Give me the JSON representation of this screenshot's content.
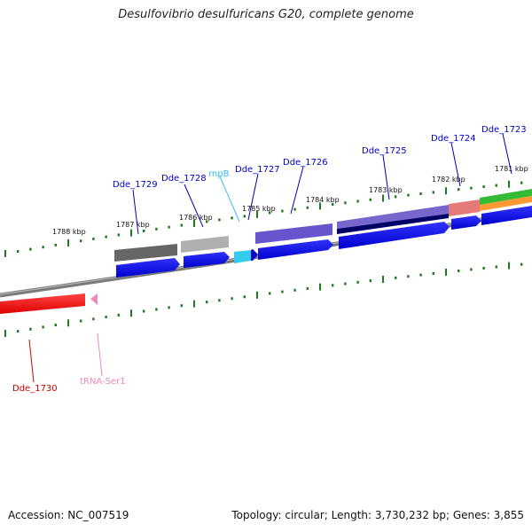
{
  "title": "Desulfovibrio desulfuricans G20, complete genome",
  "footer": {
    "accession_label": "Accession: NC_007519",
    "summary_label": "Topology: circular; Length: 3,730,232 bp; Genes: 3,855"
  },
  "kbp_labels": [
    "1788 kbp",
    "1787 kbp",
    "1786 kbp",
    "1785 kbp",
    "1784 kbp",
    "1783 kbp",
    "1782 kbp",
    "1781 kbp"
  ],
  "genes": [
    {
      "name": "Dde_1729",
      "color": "#0000cc"
    },
    {
      "name": "Dde_1728",
      "color": "#0000cc"
    },
    {
      "name": "rnpB",
      "color": "#33bbee"
    },
    {
      "name": "Dde_1727",
      "color": "#0000cc"
    },
    {
      "name": "Dde_1726",
      "color": "#0000cc"
    },
    {
      "name": "Dde_1725",
      "color": "#0000cc"
    },
    {
      "name": "Dde_1724",
      "color": "#0000cc"
    },
    {
      "name": "Dde_1723",
      "color": "#0000cc"
    },
    {
      "name": "Dde_1730",
      "color": "#cc0000"
    },
    {
      "name": "tRNA-Ser1",
      "color": "#ee88bb"
    }
  ],
  "colors": {
    "backbone": "#808080",
    "tick": "#1f7a1f",
    "forward_cds": "#0000ee",
    "reverse_cds": "#ee0000"
  }
}
